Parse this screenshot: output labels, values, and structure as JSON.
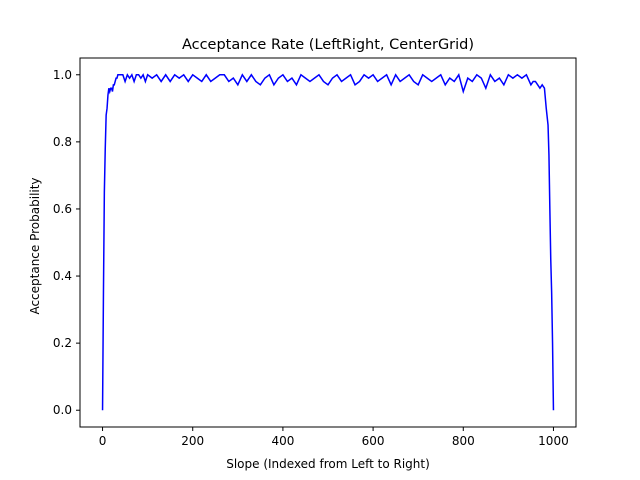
{
  "chart_data": {
    "type": "line",
    "title": "Acceptance Rate (LeftRight, CenterGrid)",
    "xlabel": "Slope (Indexed from Left to Right)",
    "ylabel": "Acceptance Probability",
    "xlim": [
      -50,
      1050
    ],
    "ylim": [
      -0.05,
      1.05
    ],
    "xticks": [
      0,
      200,
      400,
      600,
      800,
      1000
    ],
    "yticks": [
      0.0,
      0.2,
      0.4,
      0.6,
      0.8,
      1.0
    ],
    "xtick_labels": [
      "0",
      "200",
      "400",
      "600",
      "800",
      "1000"
    ],
    "ytick_labels": [
      "0.0",
      "0.2",
      "0.4",
      "0.6",
      "0.8",
      "1.0"
    ],
    "grid": false,
    "series": [
      {
        "color": "#0000ff",
        "x": [
          0,
          2,
          4,
          6,
          8,
          10,
          12,
          14,
          16,
          18,
          20,
          22,
          24,
          26,
          28,
          30,
          32,
          34,
          36,
          38,
          40,
          45,
          50,
          55,
          60,
          65,
          70,
          75,
          80,
          85,
          90,
          95,
          100,
          110,
          120,
          130,
          140,
          150,
          160,
          170,
          180,
          190,
          200,
          210,
          220,
          230,
          240,
          250,
          260,
          270,
          280,
          290,
          300,
          310,
          320,
          330,
          340,
          350,
          360,
          370,
          380,
          390,
          400,
          410,
          420,
          430,
          440,
          450,
          460,
          470,
          480,
          490,
          500,
          510,
          520,
          530,
          540,
          550,
          560,
          570,
          580,
          590,
          600,
          610,
          620,
          630,
          640,
          650,
          660,
          670,
          680,
          690,
          700,
          710,
          720,
          730,
          740,
          750,
          760,
          770,
          780,
          790,
          800,
          810,
          820,
          830,
          840,
          850,
          860,
          870,
          880,
          890,
          900,
          910,
          920,
          930,
          940,
          950,
          955,
          960,
          965,
          970,
          975,
          980,
          984,
          988,
          990,
          992,
          994,
          996,
          998,
          1000
        ],
        "y": [
          0.0,
          0.35,
          0.65,
          0.78,
          0.88,
          0.9,
          0.94,
          0.96,
          0.95,
          0.96,
          0.96,
          0.95,
          0.97,
          0.97,
          0.98,
          0.99,
          0.99,
          1.0,
          1.0,
          1.0,
          1.0,
          1.0,
          0.98,
          1.0,
          0.99,
          1.0,
          0.98,
          1.0,
          1.0,
          0.99,
          1.0,
          0.98,
          1.0,
          0.99,
          1.0,
          0.98,
          1.0,
          0.98,
          1.0,
          0.99,
          1.0,
          0.98,
          1.0,
          0.99,
          0.98,
          1.0,
          0.98,
          0.99,
          1.0,
          1.0,
          0.98,
          0.99,
          0.97,
          1.0,
          0.98,
          1.0,
          0.98,
          0.97,
          0.99,
          1.0,
          0.97,
          0.99,
          1.0,
          0.98,
          0.99,
          0.97,
          1.0,
          0.99,
          0.98,
          0.99,
          1.0,
          0.98,
          0.97,
          0.99,
          1.0,
          0.98,
          0.99,
          1.0,
          0.97,
          0.98,
          1.0,
          0.99,
          1.0,
          0.98,
          0.99,
          1.0,
          0.97,
          1.0,
          0.98,
          0.99,
          1.0,
          0.98,
          0.97,
          1.0,
          0.99,
          0.98,
          0.99,
          1.0,
          0.97,
          0.99,
          0.98,
          1.0,
          0.95,
          0.99,
          0.98,
          1.0,
          0.99,
          0.96,
          1.0,
          0.98,
          0.99,
          0.97,
          1.0,
          0.99,
          1.0,
          0.99,
          1.0,
          0.97,
          0.98,
          0.98,
          0.97,
          0.96,
          0.97,
          0.96,
          0.9,
          0.85,
          0.76,
          0.6,
          0.45,
          0.35,
          0.2,
          0.0
        ]
      }
    ]
  }
}
